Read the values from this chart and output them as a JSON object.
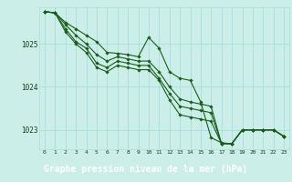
{
  "background_color": "#cceee8",
  "plot_bg_color": "#cceee8",
  "grid_color": "#aadddd",
  "line_color": "#1a5c1a",
  "xlabel": "Graphe pression niveau de la mer (hPa)",
  "xlabel_fontsize": 7,
  "xlabel_bg": "#2a5a2a",
  "xlabel_fg": "#ffffff",
  "ylim": [
    1022.55,
    1025.85
  ],
  "xlim": [
    -0.5,
    23.5
  ],
  "yticks": [
    1023,
    1024,
    1025
  ],
  "xticks": [
    0,
    1,
    2,
    3,
    4,
    5,
    6,
    7,
    8,
    9,
    10,
    11,
    12,
    13,
    14,
    15,
    16,
    17,
    18,
    19,
    20,
    21,
    22,
    23
  ],
  "series": [
    [
      1025.75,
      1025.72,
      1025.5,
      1025.35,
      1025.2,
      1025.05,
      1024.8,
      1024.78,
      1024.75,
      1024.7,
      1025.15,
      1024.9,
      1024.35,
      1024.2,
      1024.15,
      1023.65,
      1022.82,
      1022.7,
      1022.68,
      1023.0,
      1023.0,
      1023.0,
      1023.0,
      1022.85
    ],
    [
      1025.75,
      1025.72,
      1025.45,
      1025.2,
      1025.0,
      1024.75,
      1024.6,
      1024.7,
      1024.65,
      1024.6,
      1024.6,
      1024.35,
      1024.0,
      1023.72,
      1023.65,
      1023.6,
      1023.55,
      1022.68,
      1022.68,
      1023.0,
      1023.0,
      1023.0,
      1023.0,
      1022.85
    ],
    [
      1025.75,
      1025.72,
      1025.35,
      1025.05,
      1024.9,
      1024.55,
      1024.45,
      1024.6,
      1024.55,
      1024.5,
      1024.5,
      1024.2,
      1023.85,
      1023.55,
      1023.5,
      1023.45,
      1023.4,
      1022.68,
      1022.68,
      1023.0,
      1023.0,
      1023.0,
      1023.0,
      1022.85
    ],
    [
      1025.75,
      1025.72,
      1025.28,
      1025.0,
      1024.8,
      1024.45,
      1024.35,
      1024.5,
      1024.45,
      1024.4,
      1024.4,
      1024.15,
      1023.7,
      1023.35,
      1023.3,
      1023.25,
      1023.2,
      1022.68,
      1022.68,
      1023.0,
      1023.0,
      1023.0,
      1023.0,
      1022.85
    ]
  ]
}
